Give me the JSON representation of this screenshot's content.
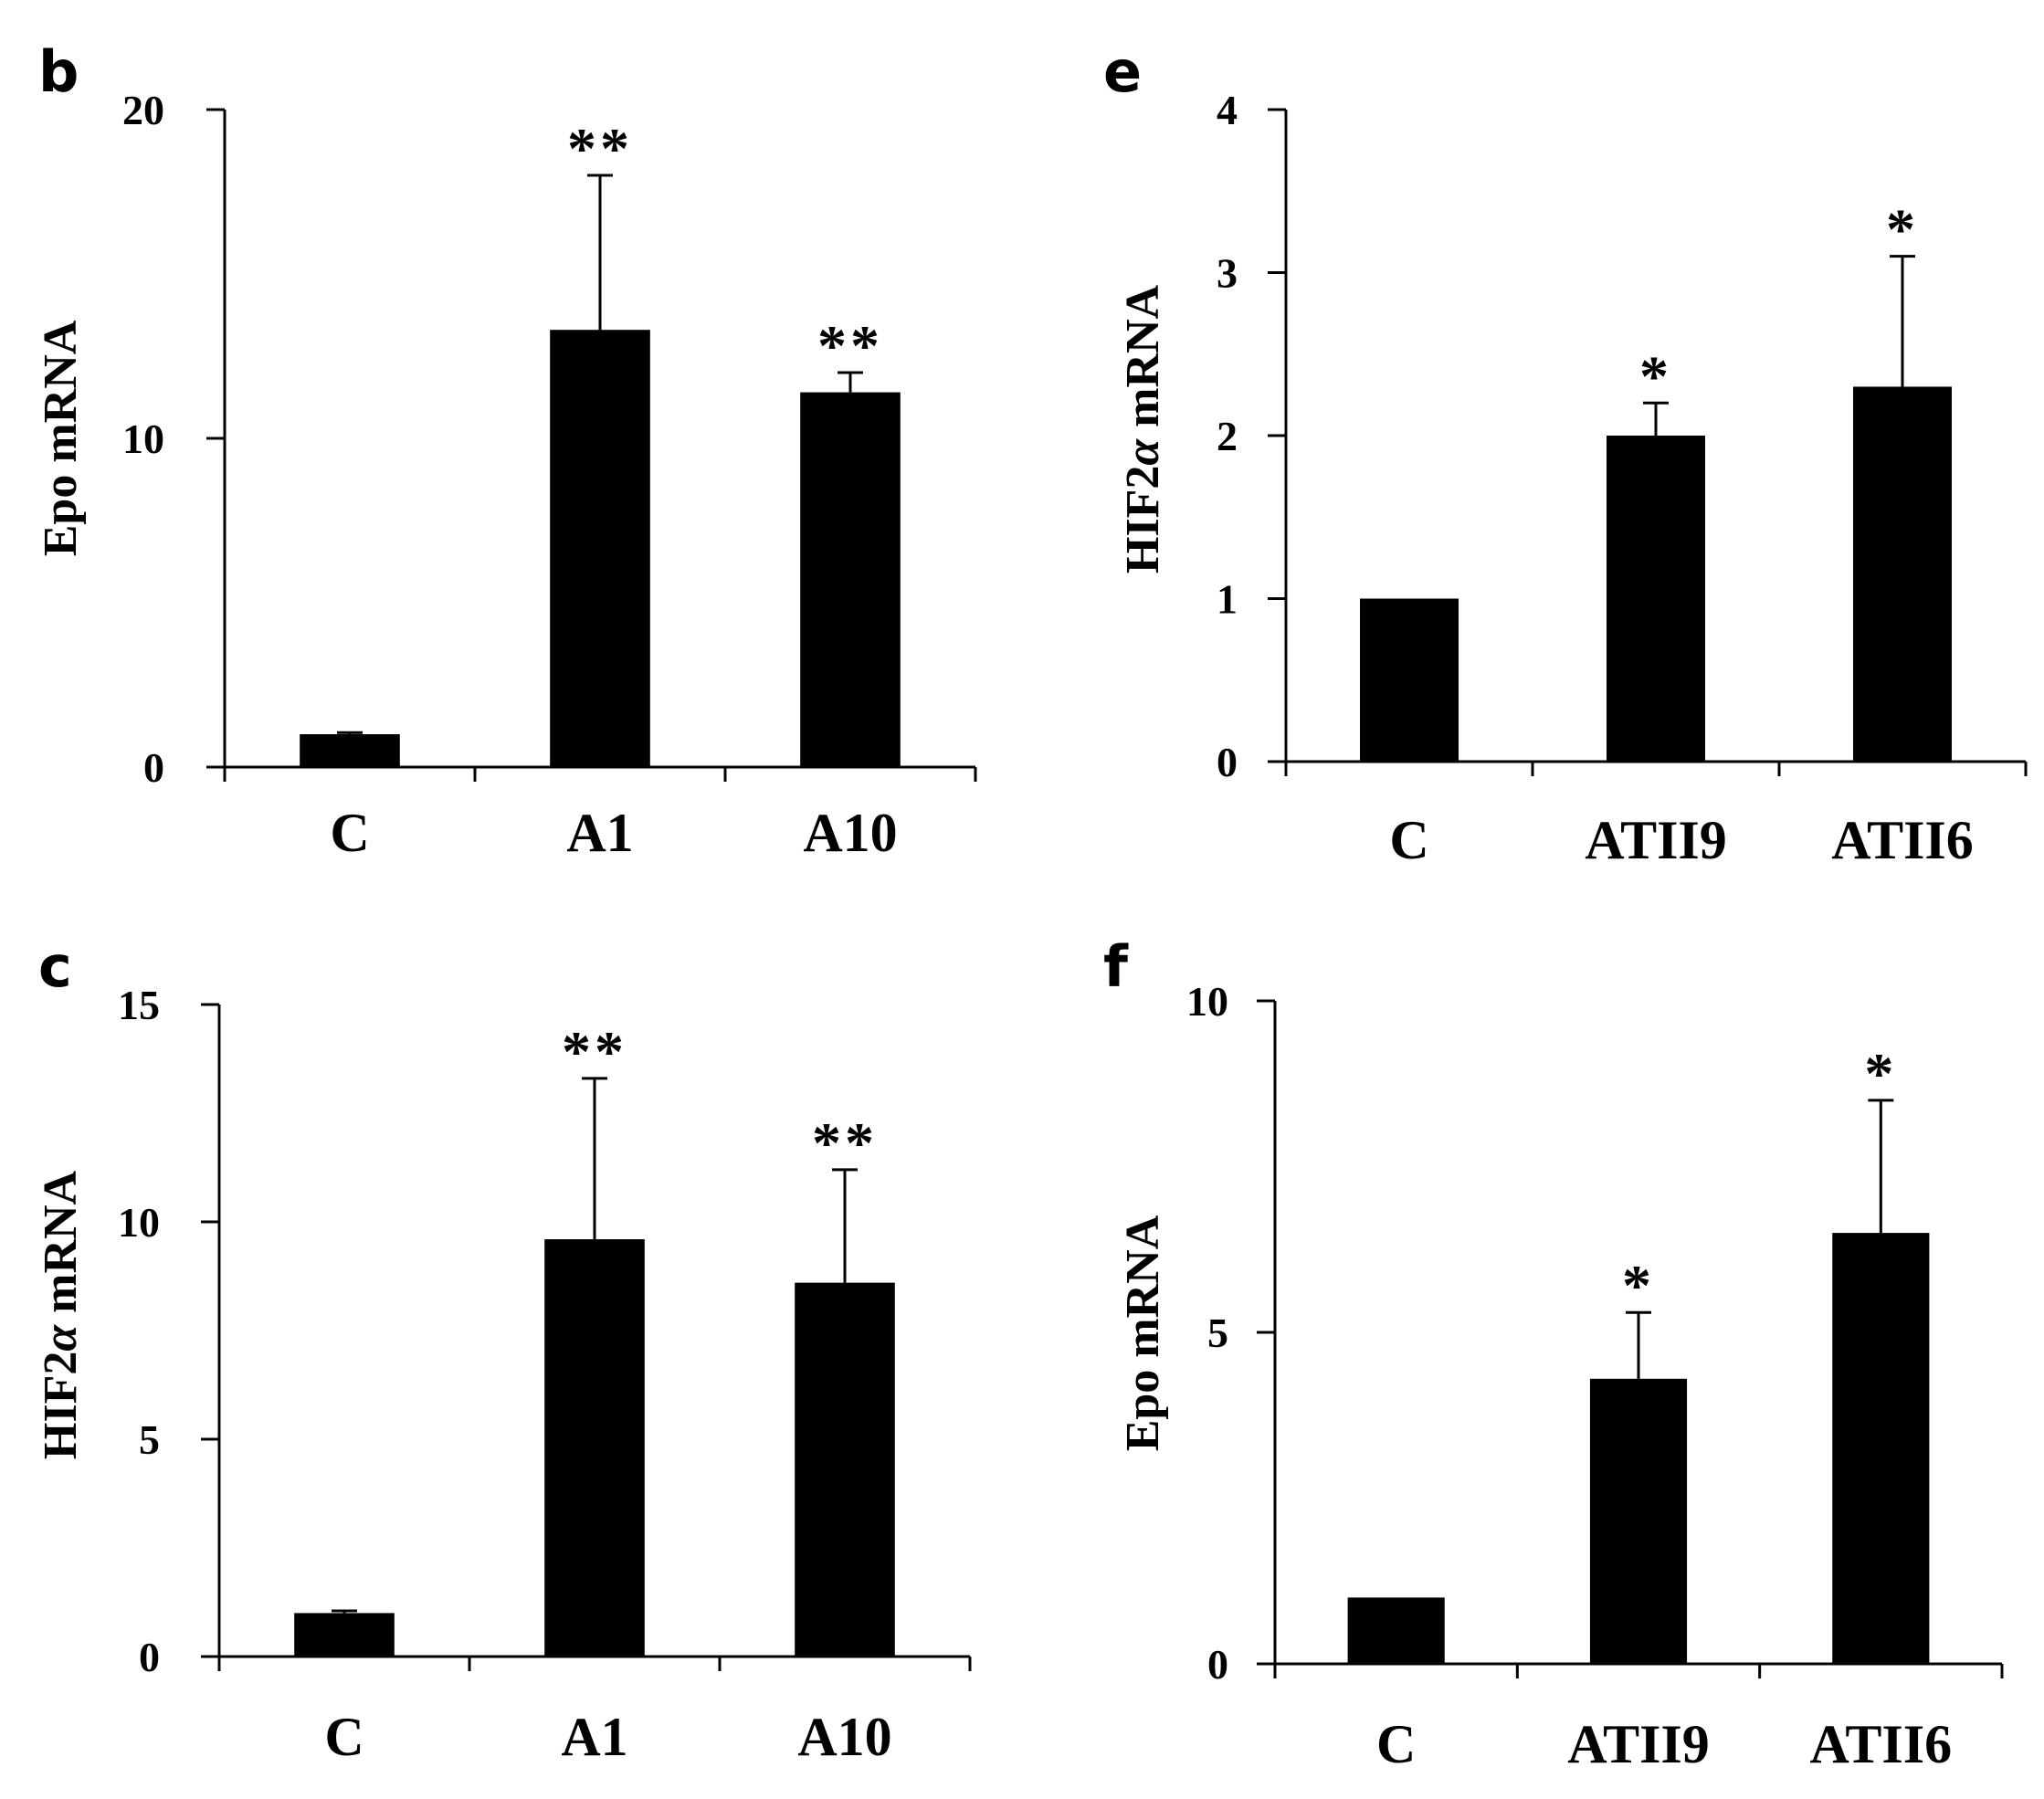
{
  "figure": {
    "colors": {
      "bar": "#000000",
      "axis": "#000000",
      "background": "#ffffff"
    }
  },
  "chart_data": [
    {
      "id": "b",
      "panel_label": "b",
      "type": "bar",
      "categories": [
        "C",
        "A1",
        "A10"
      ],
      "values": [
        1.0,
        13.3,
        11.4
      ],
      "errors": [
        0.05,
        4.7,
        0.6
      ],
      "significance": [
        "",
        "**",
        "**"
      ],
      "ylabel": "Epo mRNA",
      "ylabel_italic": "",
      "ylim": [
        0,
        20
      ],
      "yticks": [
        0,
        10,
        20
      ],
      "grid": false
    },
    {
      "id": "e",
      "panel_label": "e",
      "type": "bar",
      "categories": [
        "C",
        "ATII9",
        "ATII6"
      ],
      "values": [
        1.0,
        2.0,
        2.3
      ],
      "errors": [
        0.01,
        0.2,
        0.8
      ],
      "significance": [
        "",
        "*",
        "*"
      ],
      "ylabel": "HIF2α mRNA",
      "ylabel_italic": "α",
      "ylim": [
        0,
        4
      ],
      "yticks": [
        0,
        1,
        2,
        3,
        4
      ],
      "grid": false
    },
    {
      "id": "c",
      "panel_label": "c",
      "type": "bar",
      "categories": [
        "C",
        "A1",
        "A10"
      ],
      "values": [
        1.0,
        9.6,
        8.6
      ],
      "errors": [
        0.05,
        3.7,
        2.6
      ],
      "significance": [
        "",
        "**",
        "**"
      ],
      "ylabel": "HIF2α mRNA",
      "ylabel_italic": "α",
      "ylim": [
        0,
        15
      ],
      "yticks": [
        0,
        5,
        10,
        15
      ],
      "grid": false
    },
    {
      "id": "f",
      "panel_label": "f",
      "type": "bar",
      "categories": [
        "C",
        "ATII9",
        "ATII6"
      ],
      "values": [
        1.0,
        4.3,
        6.5
      ],
      "errors": [
        0.02,
        1.0,
        2.0
      ],
      "significance": [
        "",
        "*",
        "*"
      ],
      "ylabel": "Epo mRNA",
      "ylabel_italic": "",
      "ylim": [
        0,
        10
      ],
      "yticks": [
        0,
        5,
        10
      ],
      "grid": false
    }
  ]
}
